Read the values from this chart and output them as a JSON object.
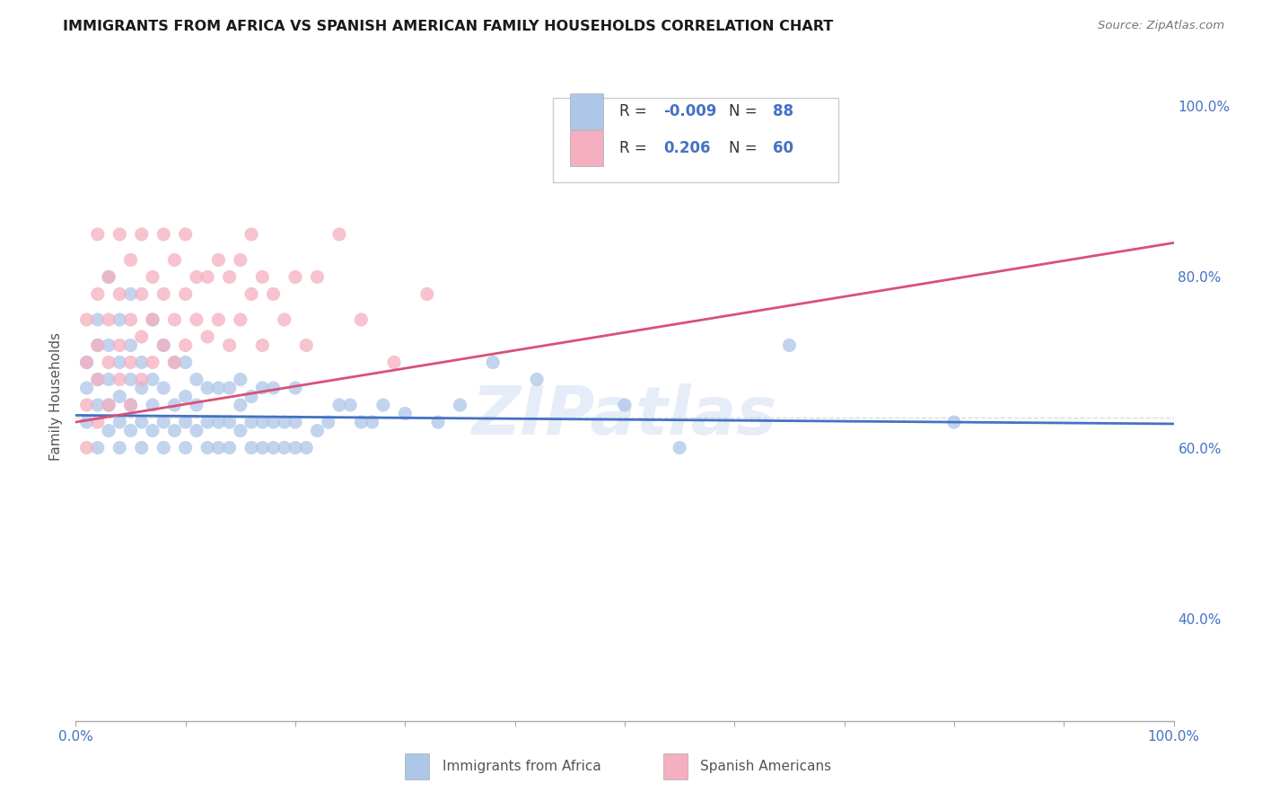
{
  "title": "IMMIGRANTS FROM AFRICA VS SPANISH AMERICAN FAMILY HOUSEHOLDS CORRELATION CHART",
  "source_text": "Source: ZipAtlas.com",
  "ylabel": "Family Households",
  "xlim": [
    0.0,
    100.0
  ],
  "ylim": [
    28.0,
    104.0
  ],
  "y_ticks_right": [
    40.0,
    60.0,
    80.0,
    100.0
  ],
  "y_tick_labels_right": [
    "40.0%",
    "60.0%",
    "80.0%",
    "100.0%"
  ],
  "dashed_line_y": 63.5,
  "blue_color": "#aec6e8",
  "blue_line_color": "#4472c4",
  "pink_color": "#f4afc0",
  "pink_line_color": "#d9507a",
  "legend_r_blue": "-0.009",
  "legend_n_blue": "88",
  "legend_r_pink": "0.206",
  "legend_n_pink": "60",
  "legend_label_blue": "Immigrants from Africa",
  "legend_label_pink": "Spanish Americans",
  "watermark": "ZIPatlas",
  "watermark_color": "#aec6e8",
  "background_color": "#ffffff",
  "grid_color": "#d8d8d8",
  "title_color": "#1a1a1a",
  "axis_label_color": "#555555",
  "blue_scatter_x": [
    1,
    1,
    1,
    2,
    2,
    2,
    2,
    2,
    3,
    3,
    3,
    3,
    3,
    4,
    4,
    4,
    4,
    4,
    5,
    5,
    5,
    5,
    5,
    6,
    6,
    6,
    6,
    7,
    7,
    7,
    7,
    8,
    8,
    8,
    8,
    9,
    9,
    9,
    10,
    10,
    10,
    10,
    11,
    11,
    11,
    12,
    12,
    12,
    13,
    13,
    13,
    14,
    14,
    14,
    15,
    15,
    15,
    16,
    16,
    16,
    17,
    17,
    17,
    18,
    18,
    18,
    19,
    19,
    20,
    20,
    20,
    21,
    22,
    23,
    24,
    25,
    26,
    27,
    28,
    30,
    33,
    35,
    38,
    42,
    50,
    55,
    65,
    80
  ],
  "blue_scatter_y": [
    63,
    67,
    70,
    60,
    65,
    68,
    72,
    75,
    62,
    65,
    68,
    72,
    80,
    60,
    63,
    66,
    70,
    75,
    62,
    65,
    68,
    72,
    78,
    60,
    63,
    67,
    70,
    62,
    65,
    68,
    75,
    60,
    63,
    67,
    72,
    62,
    65,
    70,
    60,
    63,
    66,
    70,
    62,
    65,
    68,
    60,
    63,
    67,
    60,
    63,
    67,
    60,
    63,
    67,
    62,
    65,
    68,
    60,
    63,
    66,
    60,
    63,
    67,
    60,
    63,
    67,
    60,
    63,
    60,
    63,
    67,
    60,
    62,
    63,
    65,
    65,
    63,
    63,
    65,
    64,
    63,
    65,
    70,
    68,
    65,
    60,
    72,
    63
  ],
  "pink_scatter_x": [
    1,
    1,
    1,
    1,
    2,
    2,
    2,
    2,
    2,
    3,
    3,
    3,
    3,
    4,
    4,
    4,
    4,
    5,
    5,
    5,
    5,
    6,
    6,
    6,
    6,
    7,
    7,
    7,
    8,
    8,
    8,
    9,
    9,
    9,
    10,
    10,
    10,
    11,
    11,
    12,
    12,
    13,
    13,
    14,
    14,
    15,
    15,
    16,
    16,
    17,
    17,
    18,
    19,
    20,
    21,
    22,
    24,
    26,
    29,
    32
  ],
  "pink_scatter_y": [
    60,
    65,
    70,
    75,
    63,
    68,
    72,
    78,
    85,
    65,
    70,
    75,
    80,
    68,
    72,
    78,
    85,
    65,
    70,
    75,
    82,
    68,
    73,
    78,
    85,
    70,
    75,
    80,
    72,
    78,
    85,
    70,
    75,
    82,
    72,
    78,
    85,
    75,
    80,
    73,
    80,
    75,
    82,
    72,
    80,
    75,
    82,
    78,
    85,
    72,
    80,
    78,
    75,
    80,
    72,
    80,
    85,
    75,
    70,
    78
  ],
  "blue_trend_x": [
    0,
    100
  ],
  "blue_trend_y": [
    63.8,
    62.8
  ],
  "pink_trend_x": [
    0,
    100
  ],
  "pink_trend_y": [
    63.0,
    84.0
  ]
}
